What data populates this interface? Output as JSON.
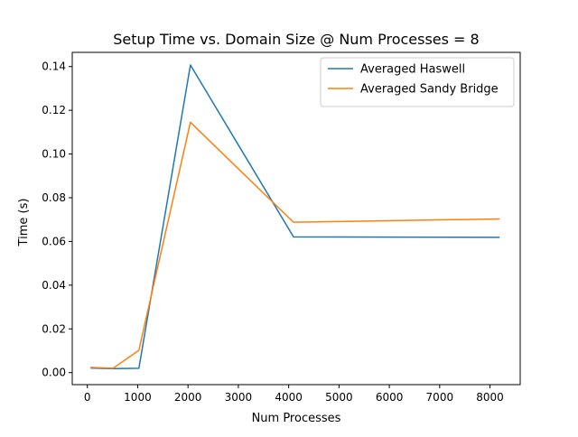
{
  "chart_data": {
    "type": "line",
    "title": "Setup Time vs. Domain Size @ Num Processes = 8",
    "xlabel": "Num Processes",
    "ylabel": "Time (s)",
    "xlim": [
      -300,
      8600
    ],
    "ylim": [
      -0.0055,
      0.1465
    ],
    "xticks": [
      0,
      1000,
      2000,
      3000,
      4000,
      5000,
      6000,
      7000,
      8000
    ],
    "xtick_labels": [
      "0",
      "1000",
      "2000",
      "3000",
      "4000",
      "5000",
      "6000",
      "7000",
      "8000"
    ],
    "yticks": [
      0.0,
      0.02,
      0.04,
      0.06,
      0.08,
      0.1,
      0.12,
      0.14
    ],
    "ytick_labels": [
      "0.00",
      "0.02",
      "0.04",
      "0.06",
      "0.08",
      "0.10",
      "0.12",
      "0.14"
    ],
    "grid": false,
    "legend_position": "top-right",
    "x": [
      64,
      512,
      1024,
      2048,
      4096,
      8192
    ],
    "series": [
      {
        "name": "Averaged Haswell",
        "color": "#1f77b4",
        "values": [
          0.0021,
          0.0018,
          0.002,
          0.1407,
          0.0621,
          0.0619
        ]
      },
      {
        "name": "Averaged Sandy Bridge",
        "color": "#ff7f0e",
        "values": [
          0.0024,
          0.002,
          0.0102,
          0.1145,
          0.0688,
          0.0703
        ]
      }
    ]
  }
}
